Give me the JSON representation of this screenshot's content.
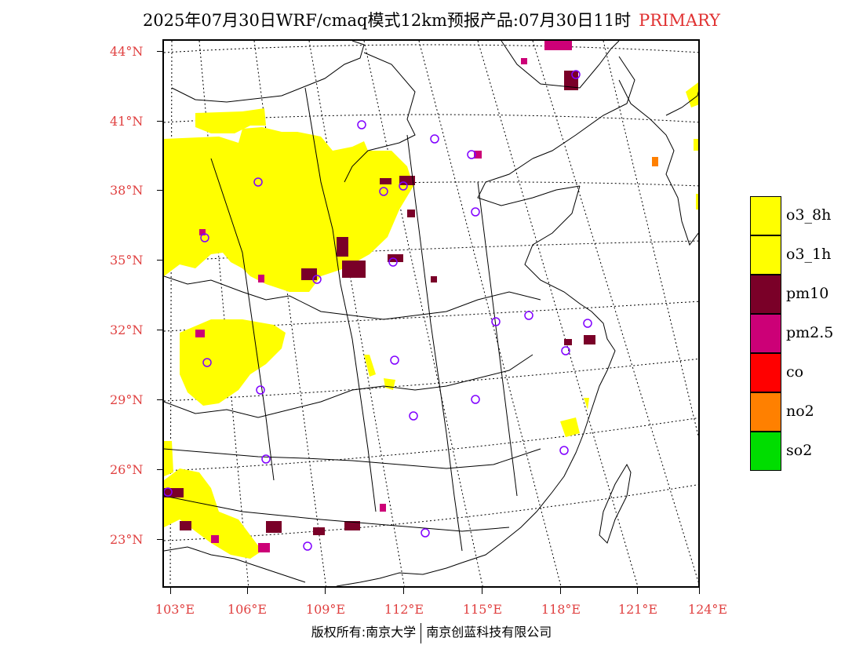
{
  "title": {
    "main": "2025年07月30日WRF/cmaq模式12km预报产品:07月30日11时",
    "tag": "PRIMARY"
  },
  "colors": {
    "label_red": "#e04040",
    "yellow": "#ffff00",
    "maroon": "#7a0028",
    "magenta": "#cc0077",
    "red": "#ff0000",
    "orange": "#ff8000",
    "green": "#00dd00",
    "city_marker": "#8000ff"
  },
  "axes": {
    "lat_labels": [
      "44°N",
      "41°N",
      "38°N",
      "35°N",
      "32°N",
      "29°N",
      "26°N",
      "23°N"
    ],
    "lon_labels": [
      "103°E",
      "106°E",
      "109°E",
      "112°E",
      "115°E",
      "118°E",
      "121°E",
      "124°E"
    ]
  },
  "legend": [
    {
      "label": "o3_8h",
      "color": "#ffff00"
    },
    {
      "label": "o3_1h",
      "color": "#ffff00"
    },
    {
      "label": "pm10",
      "color": "#7a0028"
    },
    {
      "label": "pm2.5",
      "color": "#cc0077"
    },
    {
      "label": "co",
      "color": "#ff0000"
    },
    {
      "label": "no2",
      "color": "#ff8000"
    },
    {
      "label": "so2",
      "color": "#00dd00"
    }
  ],
  "footer": {
    "left": "版权所有:南京大学",
    "right": "南京创蓝科技有限公司"
  }
}
